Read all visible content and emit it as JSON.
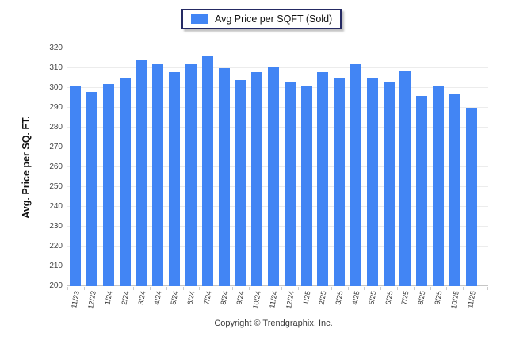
{
  "legend": {
    "label": "Avg Price per SQFT (Sold)"
  },
  "footer": {
    "text": "Copyright © Trendgraphix, Inc."
  },
  "colors": {
    "bar": "#4285f4",
    "grid": "#ececec",
    "axis_line": "#c6c6c6",
    "legend_border": "#252a63",
    "tick_text": "#444444"
  },
  "chart_data": {
    "type": "bar",
    "title": "Avg Price per SQFT (Sold)",
    "categories": [
      "11/23",
      "12/23",
      "1/24",
      "2/24",
      "3/24",
      "4/24",
      "5/24",
      "6/24",
      "7/24",
      "8/24",
      "9/24",
      "10/24",
      "11/24",
      "12/24",
      "1/25",
      "2/25",
      "3/25",
      "4/25",
      "5/25",
      "6/25",
      "7/25",
      "8/25",
      "9/25",
      "10/25",
      "11/25"
    ],
    "values": [
      301,
      298,
      302,
      305,
      314,
      312,
      308,
      312,
      316,
      310,
      304,
      308,
      311,
      303,
      301,
      308,
      305,
      312,
      305,
      303,
      309,
      296,
      301,
      297,
      290
    ],
    "xlabel": "",
    "ylabel": "Avg. Price per SQ. FT.",
    "ylim": [
      200,
      320
    ],
    "ytick_step": 10,
    "yticks": [
      200,
      210,
      220,
      230,
      240,
      250,
      260,
      270,
      280,
      290,
      300,
      310,
      320
    ],
    "grid": true,
    "legend_position": "top-center"
  }
}
